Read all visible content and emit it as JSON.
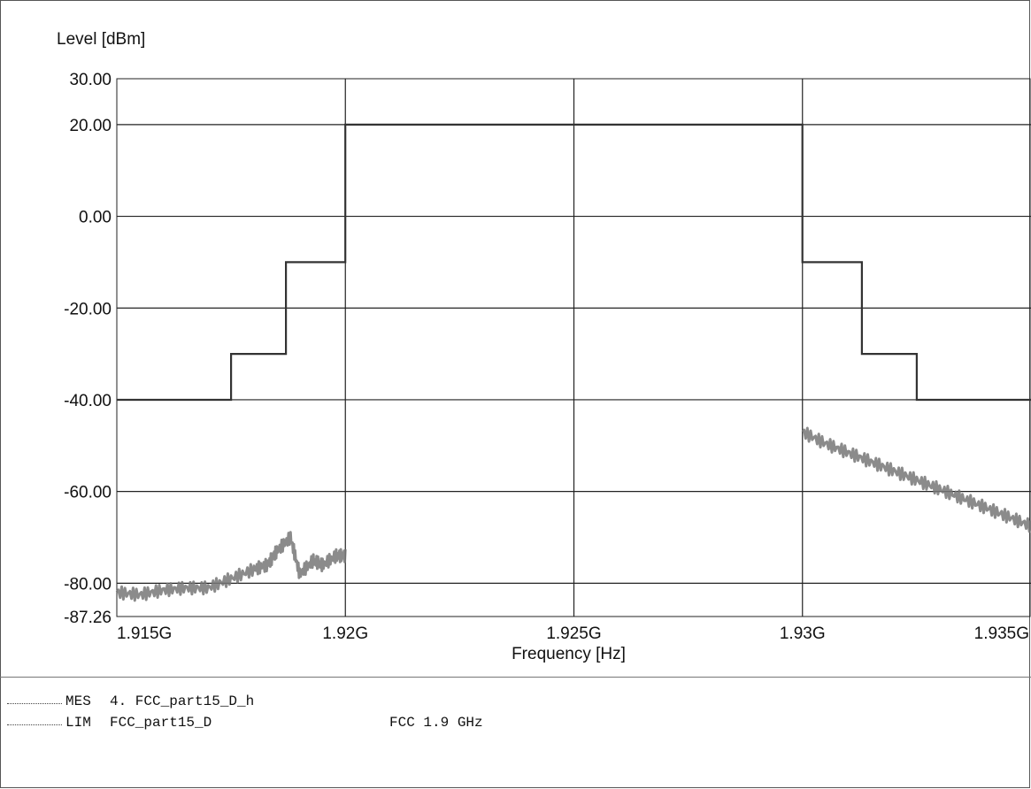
{
  "chart_data": {
    "type": "line",
    "ylabel": "Level [dBm]",
    "xlabel": "Frequency [Hz]",
    "y_ticks": [
      "30.00",
      "20.00",
      "0.00",
      "-20.00",
      "-40.00",
      "-60.00",
      "-80.00",
      "-87.26"
    ],
    "y_tick_values": [
      30,
      20,
      0,
      -20,
      -40,
      -60,
      -80,
      -87.26
    ],
    "x_ticks": [
      "1.915G",
      "1.92G",
      "1.925G",
      "1.93G",
      "1.935G"
    ],
    "x_tick_values": [
      1.915,
      1.92,
      1.925,
      1.93,
      1.935
    ],
    "xlim": [
      1.915,
      1.935
    ],
    "ylim": [
      -87.26,
      30
    ],
    "grid": true,
    "series": [
      {
        "name": "FCC_part15_D",
        "kind": "limit",
        "x": [
          1.915,
          1.9175,
          1.9175,
          1.9187,
          1.9187,
          1.92,
          1.92,
          1.93,
          1.93,
          1.9313,
          1.9313,
          1.9325,
          1.9325,
          1.935
        ],
        "y": [
          -40,
          -40,
          -30,
          -30,
          -10,
          -10,
          20,
          20,
          -10,
          -10,
          -30,
          -30,
          -40,
          -40
        ]
      },
      {
        "name": "4. FCC_part15_D_h",
        "kind": "measurement",
        "x": [
          1.915,
          1.9155,
          1.916,
          1.9165,
          1.917,
          1.9175,
          1.918,
          1.9183,
          1.9185,
          1.9188,
          1.919,
          1.9193,
          1.9195,
          1.9198,
          1.92,
          1.93,
          1.9305,
          1.931,
          1.9315,
          1.932,
          1.9325,
          1.933,
          1.9335,
          1.934,
          1.9345,
          1.935
        ],
        "y": [
          -82,
          -82.5,
          -81.5,
          -81,
          -81,
          -79,
          -77,
          -76,
          -73,
          -70,
          -78,
          -75,
          -76,
          -74,
          -74,
          -47,
          -49.5,
          -51.5,
          -53.5,
          -55.5,
          -57.5,
          -59.5,
          -61.5,
          -63.5,
          -65.5,
          -67.5
        ]
      }
    ]
  },
  "legend": [
    {
      "tag": "MES",
      "name": "4. FCC_part15_D_h",
      "extra": ""
    },
    {
      "tag": "LIM",
      "name": "FCC_part15_D",
      "extra": "FCC 1.9 GHz"
    }
  ]
}
